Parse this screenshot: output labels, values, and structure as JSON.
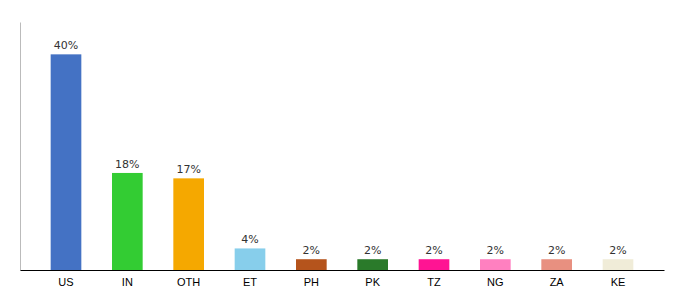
{
  "chart_data": {
    "type": "bar",
    "categories": [
      "US",
      "IN",
      "OTH",
      "ET",
      "PH",
      "PK",
      "TZ",
      "NG",
      "ZA",
      "KE"
    ],
    "values": [
      40,
      18,
      17,
      4,
      2,
      2,
      2,
      2,
      2,
      2
    ],
    "value_labels": [
      "40%",
      "18%",
      "17%",
      "4%",
      "2%",
      "2%",
      "2%",
      "2%",
      "2%",
      "2%"
    ],
    "colors": [
      "#4472c4",
      "#33cc33",
      "#f5a800",
      "#87ceeb",
      "#b5541c",
      "#2a7a2a",
      "#ff1493",
      "#ff80c0",
      "#e89080",
      "#f0ecd8"
    ],
    "ylim": [
      0,
      46
    ],
    "data_labels": true,
    "grid": false,
    "tick_labels": "x"
  }
}
